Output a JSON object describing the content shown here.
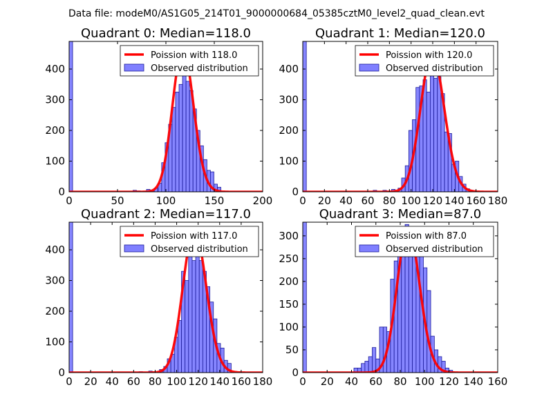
{
  "figure_title": "Data file: modeM0/AS1G05_214T01_9000000684_05385cztM0_level2_quad_clean.evt",
  "colors": {
    "curve": "#ff0000",
    "bar_fill": "#7f7fff",
    "bar_edge": "#1a1a99",
    "axis": "#000000"
  },
  "chart_data": [
    {
      "type": "bar",
      "title": "Quadrant 0: Median=118.0",
      "xlim": [
        0,
        200
      ],
      "ylim": [
        0,
        490
      ],
      "xticks": [
        0,
        50,
        100,
        150,
        200
      ],
      "yticks": [
        0,
        100,
        200,
        300,
        400
      ],
      "median": 118.0,
      "scale": 465,
      "legend": {
        "curve": "Poission with 118.0",
        "bars": "Observed distribution"
      },
      "bin_width": 3.6,
      "x": [
        0,
        66,
        70,
        80,
        84,
        88,
        92,
        95.6,
        99.2,
        102.8,
        106.4,
        110,
        113.6,
        117.2,
        120.8,
        124.4,
        128,
        131.6,
        135.2,
        138.8,
        142.4,
        146,
        149.6,
        153.2
      ],
      "values": [
        490,
        5,
        3,
        8,
        4,
        12,
        28,
        95,
        160,
        220,
        275,
        325,
        350,
        410,
        360,
        330,
        270,
        200,
        150,
        105,
        70,
        65,
        25,
        15
      ]
    },
    {
      "type": "bar",
      "title": "Quadrant 1: Median=120.0",
      "xlim": [
        0,
        180
      ],
      "ylim": [
        0,
        490
      ],
      "xticks": [
        0,
        20,
        40,
        60,
        80,
        100,
        120,
        140,
        160,
        180
      ],
      "yticks": [
        0,
        100,
        200,
        300,
        400
      ],
      "median": 120.0,
      "scale": 450,
      "legend": {
        "curve": "Poission with 120.0",
        "bars": "Observed distribution"
      },
      "bin_width": 3.3,
      "x": [
        0,
        65,
        74,
        82,
        88,
        91.3,
        94.6,
        97.9,
        101.2,
        104.5,
        107.8,
        111.1,
        114.4,
        117.7,
        121,
        124.3,
        127.6,
        130.9,
        134.2,
        137.5,
        140.8,
        144.1,
        147.4,
        150.7,
        154
      ],
      "values": [
        490,
        5,
        5,
        8,
        12,
        45,
        85,
        200,
        235,
        340,
        345,
        365,
        325,
        430,
        370,
        375,
        320,
        195,
        190,
        90,
        100,
        50,
        25,
        10,
        5
      ]
    },
    {
      "type": "bar",
      "title": "Quadrant 2: Median=117.0",
      "xlim": [
        0,
        180
      ],
      "ylim": [
        0,
        490
      ],
      "xticks": [
        0,
        20,
        40,
        60,
        80,
        100,
        120,
        140,
        160,
        180
      ],
      "yticks": [
        0,
        100,
        200,
        300,
        400
      ],
      "median": 117.0,
      "scale": 465,
      "legend": {
        "curve": "Poission with 117.0",
        "bars": "Observed distribution"
      },
      "bin_width": 3.3,
      "x": [
        0,
        65,
        74,
        84,
        88,
        91.3,
        94.6,
        97.9,
        101.2,
        104.5,
        107.8,
        111.1,
        114.4,
        117.7,
        121,
        124.3,
        127.6,
        130.9,
        134.2,
        137.5,
        140.8,
        144.1,
        147.4
      ],
      "values": [
        490,
        3,
        5,
        10,
        20,
        45,
        60,
        115,
        170,
        330,
        300,
        395,
        365,
        440,
        365,
        330,
        280,
        230,
        175,
        95,
        80,
        40,
        30
      ]
    },
    {
      "type": "bar",
      "title": "Quadrant 3: Median=87.0",
      "xlim": [
        0,
        160
      ],
      "ylim": [
        0,
        330
      ],
      "xticks": [
        0,
        20,
        40,
        60,
        80,
        100,
        120,
        140,
        160
      ],
      "yticks": [
        0,
        50,
        100,
        150,
        200,
        250,
        300
      ],
      "median": 87.0,
      "scale": 315,
      "legend": {
        "curve": "Poission with 87.0",
        "bars": "Observed distribution"
      },
      "bin_width": 3,
      "x": [
        0,
        42,
        45,
        48,
        51,
        54,
        57,
        60,
        63,
        66,
        69,
        72,
        75,
        78,
        81,
        84,
        87,
        90,
        93,
        96,
        99,
        102,
        105,
        108,
        111,
        114,
        117,
        120
      ],
      "values": [
        330,
        10,
        10,
        20,
        25,
        35,
        55,
        30,
        100,
        100,
        90,
        205,
        245,
        260,
        275,
        325,
        285,
        265,
        315,
        305,
        230,
        180,
        80,
        50,
        35,
        25,
        10,
        5
      ]
    }
  ]
}
